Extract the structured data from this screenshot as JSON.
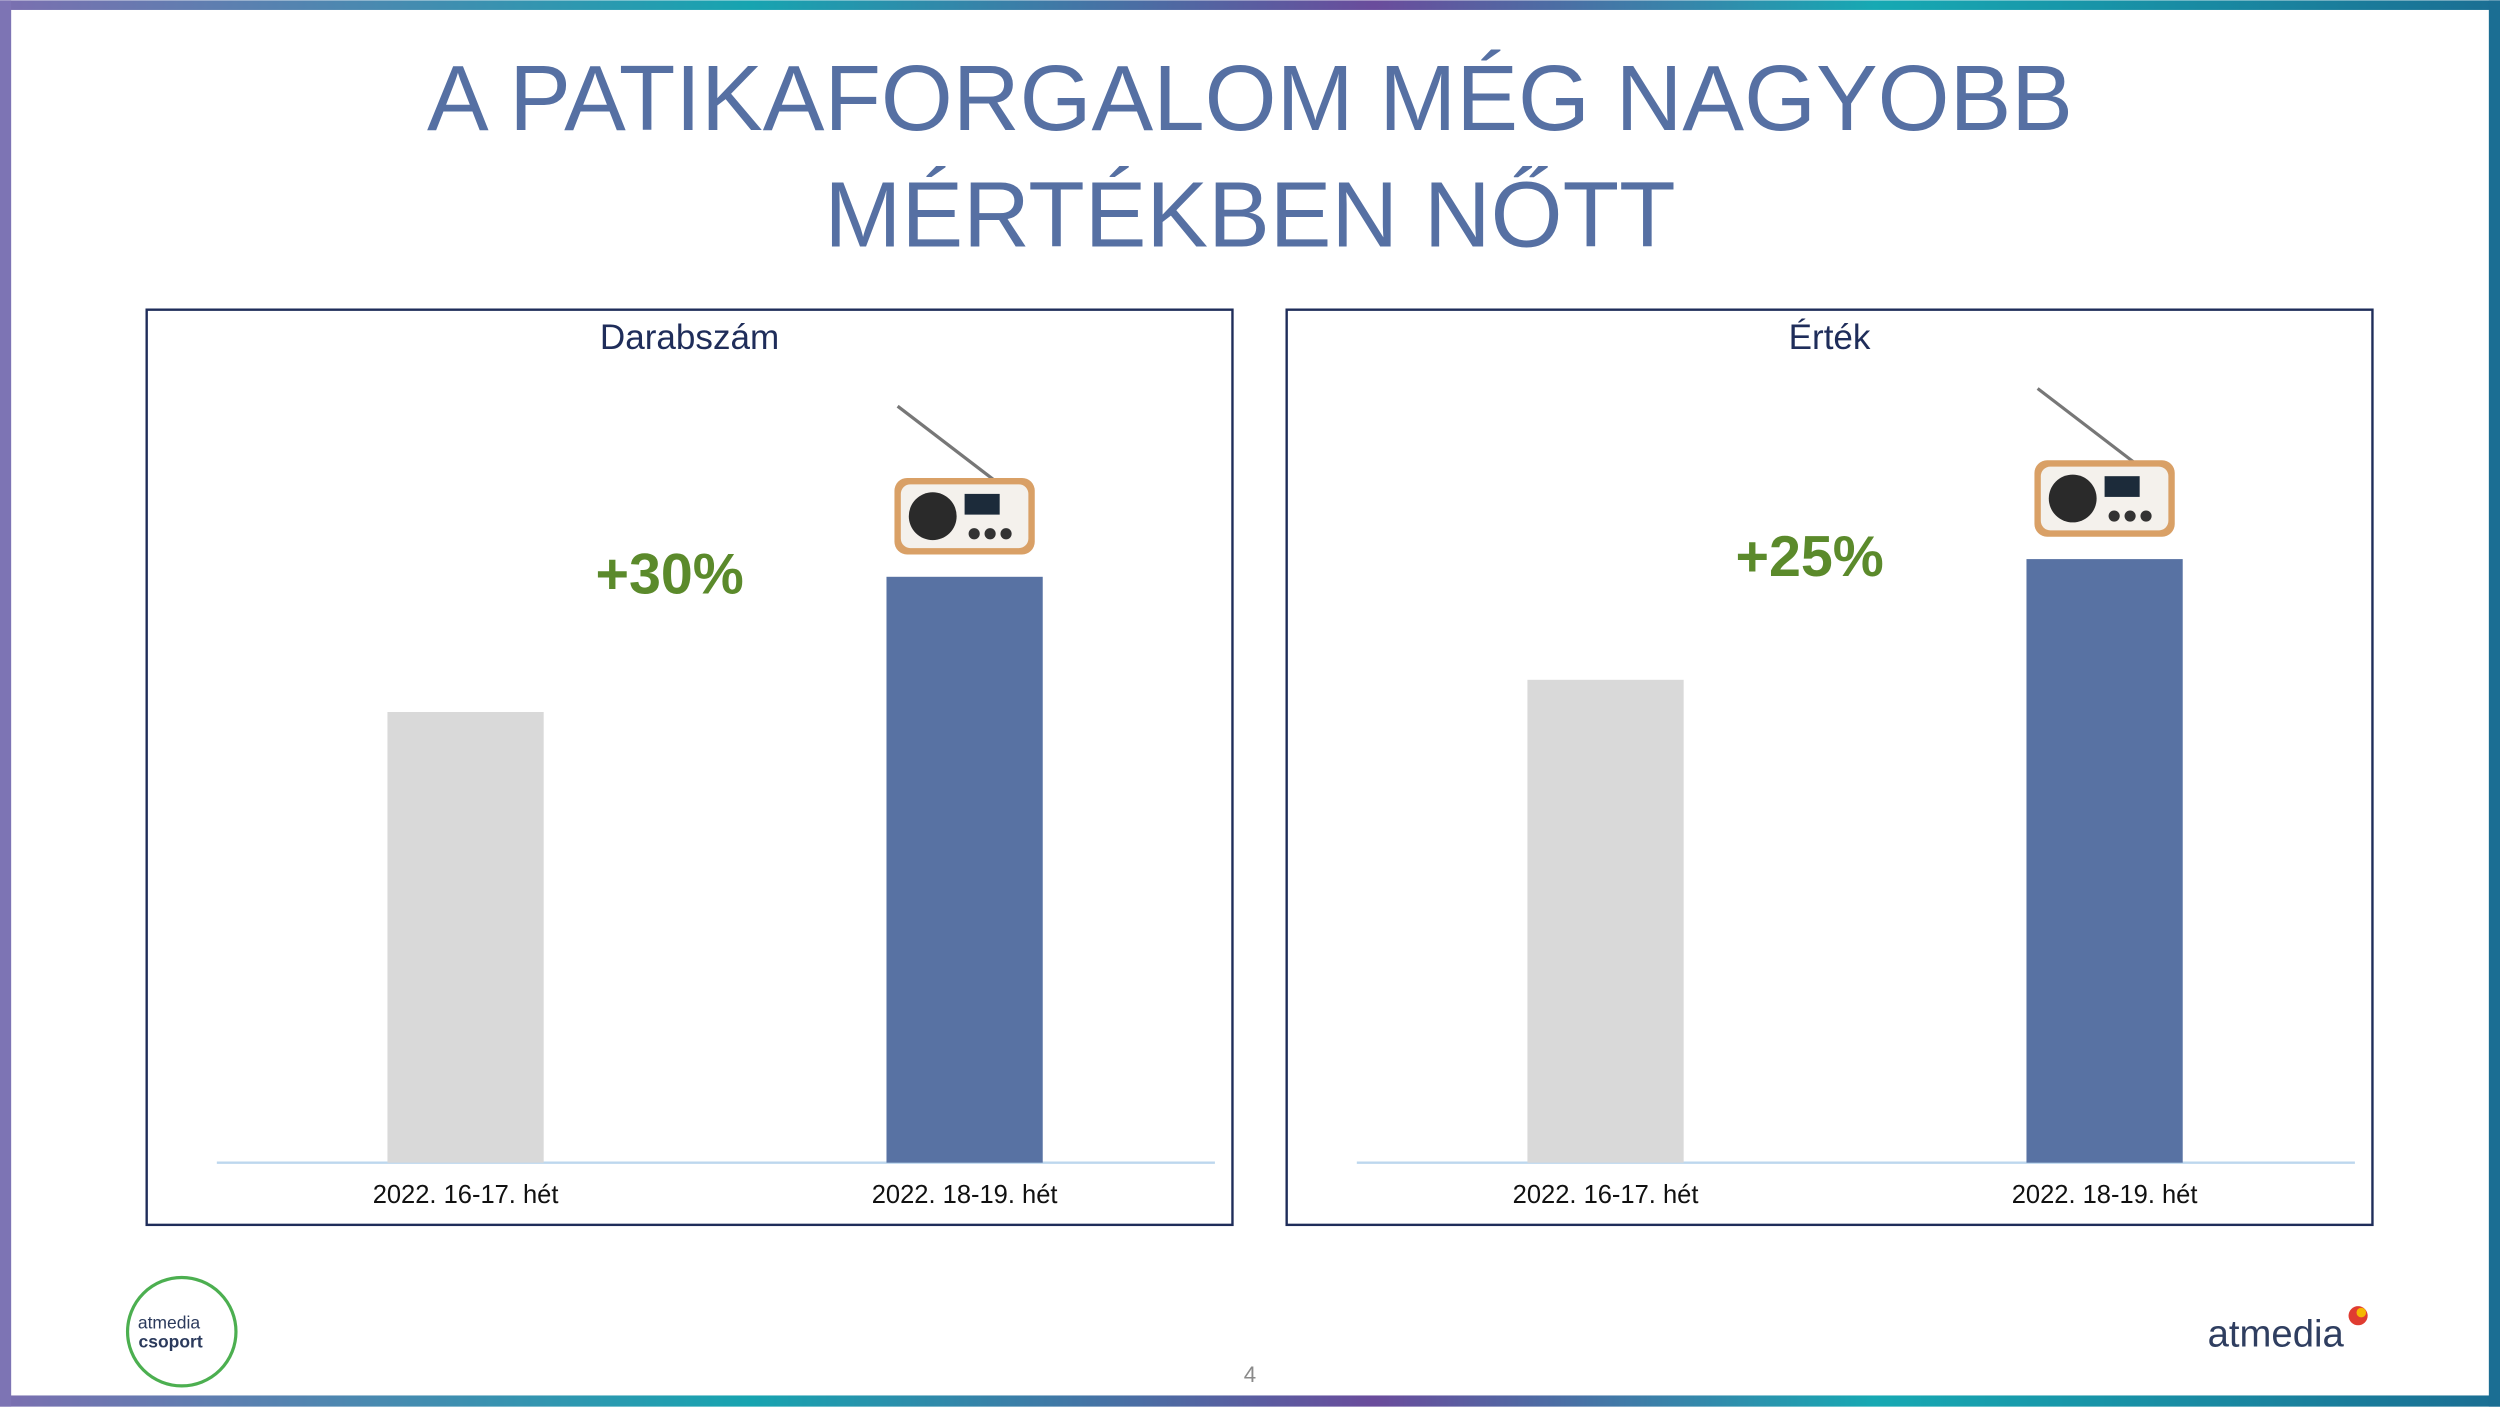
{
  "slide": {
    "title_lines": [
      "A PATIKAFORGALOM MÉG NAGYOBB",
      "MÉRTÉKBEN NŐTT"
    ],
    "page_number": "4",
    "logo_left": [
      "atmedia",
      "csoport"
    ],
    "logo_right": "atmedia"
  },
  "chart_data": [
    {
      "type": "bar",
      "title": "Darabszám",
      "categories": [
        "2022. 16-17. hét",
        "2022. 18-19. hét"
      ],
      "values": [
        100,
        130
      ],
      "colors": [
        "#d9d9d9",
        "#5872a3"
      ],
      "ylim": [
        0,
        150
      ],
      "annotation": "+30%"
    },
    {
      "type": "bar",
      "title": "Érték",
      "categories": [
        "2022. 16-17. hét",
        "2022. 18-19. hét"
      ],
      "values": [
        100,
        125
      ],
      "colors": [
        "#d9d9d9",
        "#5872a3"
      ],
      "ylim": [
        0,
        140
      ],
      "annotation": "+25%"
    }
  ]
}
